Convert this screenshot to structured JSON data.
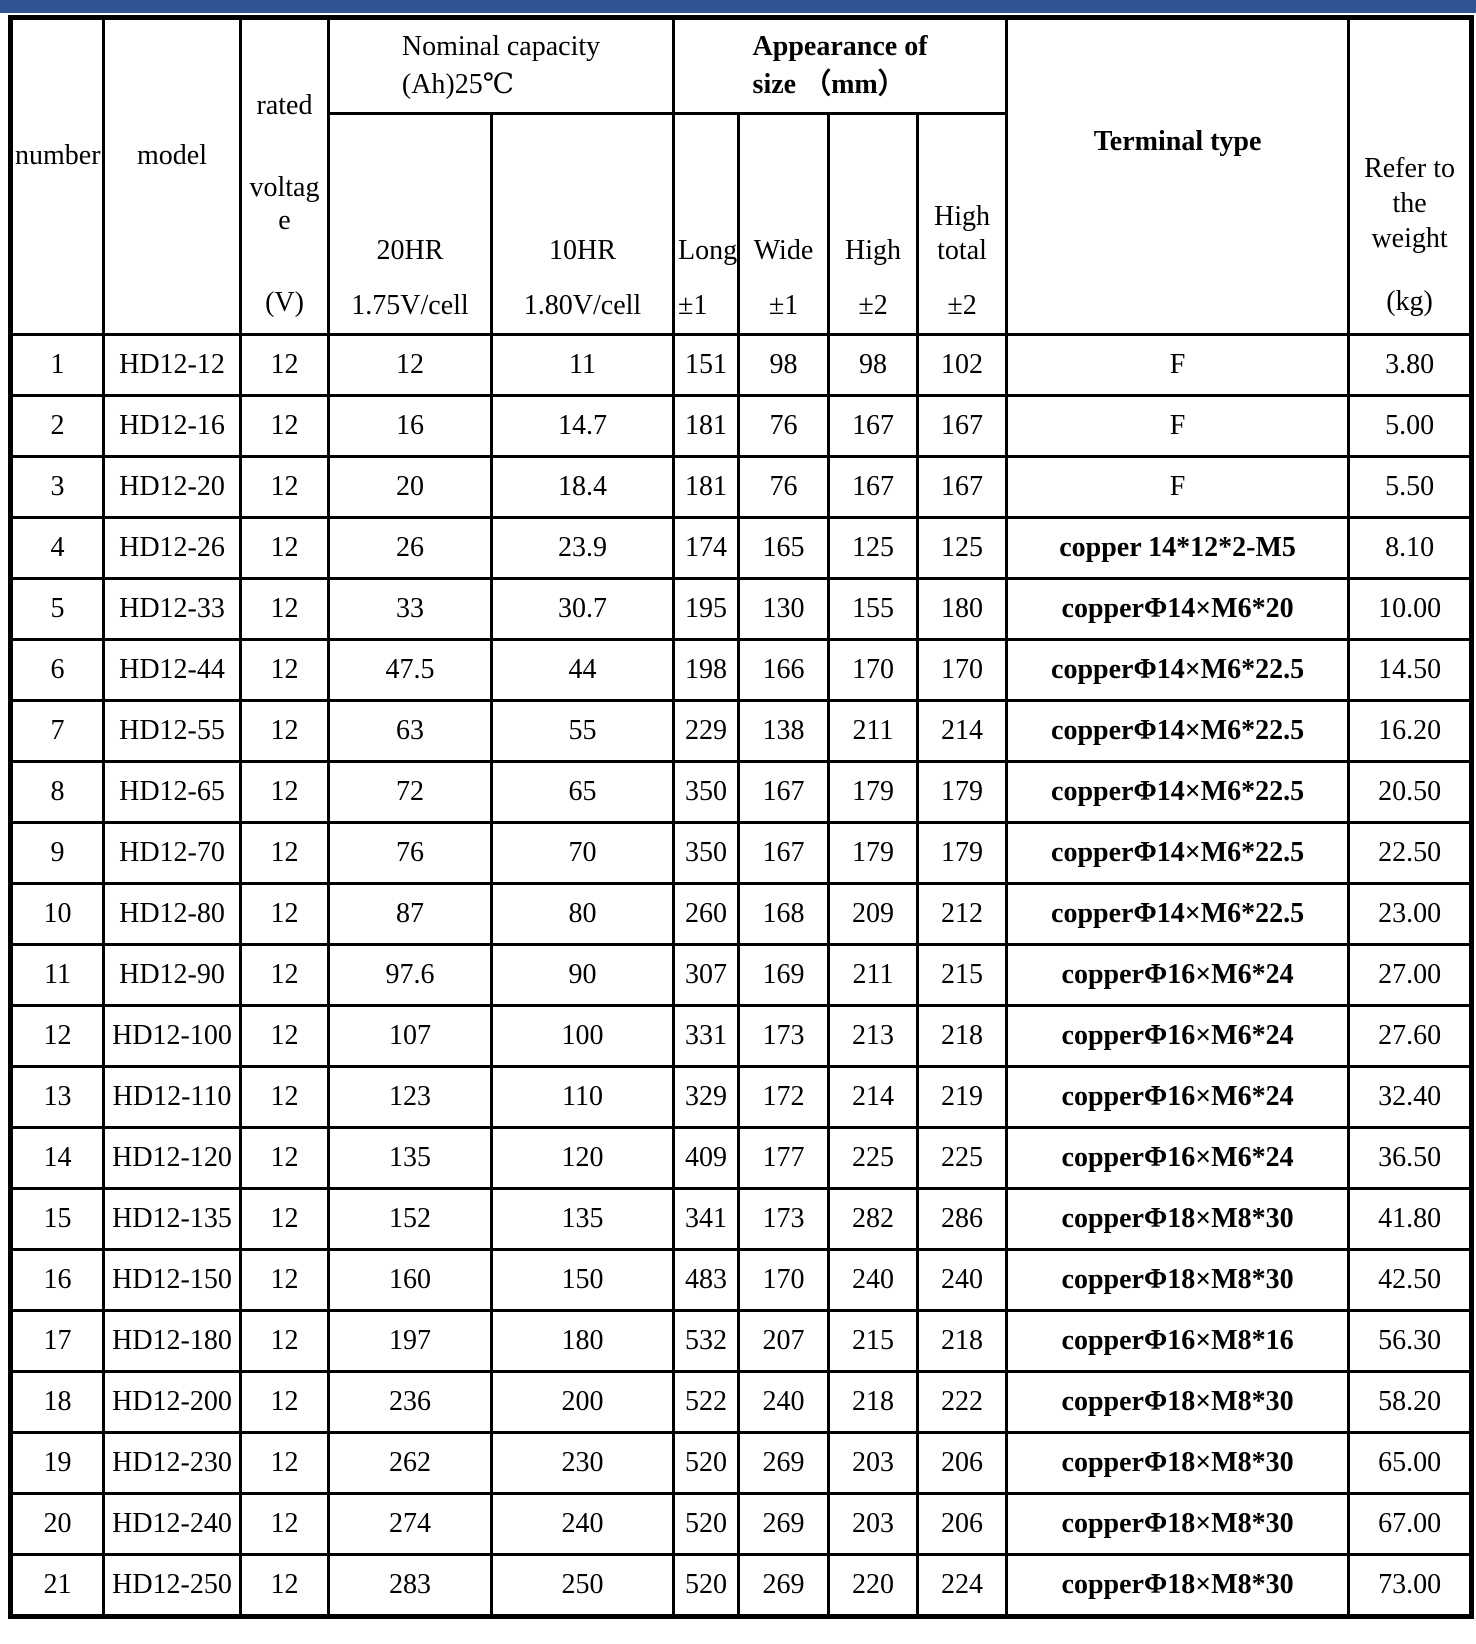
{
  "page": {
    "top_bar_color": "#2f5496"
  },
  "table": {
    "header": {
      "number_label": "number",
      "model_label": "model",
      "rated_voltage": {
        "lines": [
          "rated",
          "voltag",
          "e"
        ],
        "unit": "(V)"
      },
      "nominal_capacity": {
        "line1": "Nominal capacity",
        "line2": "(Ah)25℃"
      },
      "capacity_cols": [
        {
          "label": "20HR",
          "sub": "1.75V/cell"
        },
        {
          "label": "10HR",
          "sub": "1.80V/cell"
        }
      ],
      "appearance": {
        "line1": "Appearance of",
        "line2": "size （mm）"
      },
      "size_cols": [
        {
          "line1": "Long",
          "line2": "",
          "tol": "±1"
        },
        {
          "line1": "Wide",
          "line2": "",
          "tol": "±1"
        },
        {
          "line1": "High",
          "line2": "",
          "tol": "±2"
        },
        {
          "line1": "High",
          "line2": "total",
          "tol": "±2"
        }
      ],
      "terminal_label": "Terminal type",
      "weight": {
        "lines": [
          "Refer to",
          "the",
          "weight"
        ],
        "unit": "(kg)"
      }
    },
    "columns_order": [
      "number",
      "model",
      "voltage",
      "c20",
      "c10",
      "long",
      "wide",
      "high",
      "high_total",
      "terminal",
      "weight"
    ],
    "rows": [
      {
        "number": "1",
        "model": "HD12-12",
        "voltage": "12",
        "c20": "12",
        "c10": "11",
        "long": "151",
        "wide": "98",
        "high": "98",
        "high_total": "102",
        "terminal": "F",
        "weight": "3.80"
      },
      {
        "number": "2",
        "model": "HD12-16",
        "voltage": "12",
        "c20": "16",
        "c10": "14.7",
        "long": "181",
        "wide": "76",
        "high": "167",
        "high_total": "167",
        "terminal": "F",
        "weight": "5.00"
      },
      {
        "number": "3",
        "model": "HD12-20",
        "voltage": "12",
        "c20": "20",
        "c10": "18.4",
        "long": "181",
        "wide": "76",
        "high": "167",
        "high_total": "167",
        "terminal": "F",
        "weight": "5.50"
      },
      {
        "number": "4",
        "model": "HD12-26",
        "voltage": "12",
        "c20": "26",
        "c10": "23.9",
        "long": "174",
        "wide": "165",
        "high": "125",
        "high_total": "125",
        "terminal": "copper 14*12*2-M5",
        "weight": "8.10"
      },
      {
        "number": "5",
        "model": "HD12-33",
        "voltage": "12",
        "c20": "33",
        "c10": "30.7",
        "long": "195",
        "wide": "130",
        "high": "155",
        "high_total": "180",
        "terminal": "copperΦ14×M6*20",
        "weight": "10.00"
      },
      {
        "number": "6",
        "model": "HD12-44",
        "voltage": "12",
        "c20": "47.5",
        "c10": "44",
        "long": "198",
        "wide": "166",
        "high": "170",
        "high_total": "170",
        "terminal": "copperΦ14×M6*22.5",
        "weight": "14.50"
      },
      {
        "number": "7",
        "model": "HD12-55",
        "voltage": "12",
        "c20": "63",
        "c10": "55",
        "long": "229",
        "wide": "138",
        "high": "211",
        "high_total": "214",
        "terminal": "copperΦ14×M6*22.5",
        "weight": "16.20"
      },
      {
        "number": "8",
        "model": "HD12-65",
        "voltage": "12",
        "c20": "72",
        "c10": "65",
        "long": "350",
        "wide": "167",
        "high": "179",
        "high_total": "179",
        "terminal": "copperΦ14×M6*22.5",
        "weight": "20.50"
      },
      {
        "number": "9",
        "model": "HD12-70",
        "voltage": "12",
        "c20": "76",
        "c10": "70",
        "long": "350",
        "wide": "167",
        "high": "179",
        "high_total": "179",
        "terminal": "copperΦ14×M6*22.5",
        "weight": "22.50"
      },
      {
        "number": "10",
        "model": "HD12-80",
        "voltage": "12",
        "c20": "87",
        "c10": "80",
        "long": "260",
        "wide": "168",
        "high": "209",
        "high_total": "212",
        "terminal": "copperΦ14×M6*22.5",
        "weight": "23.00"
      },
      {
        "number": "11",
        "model": "HD12-90",
        "voltage": "12",
        "c20": "97.6",
        "c10": "90",
        "long": "307",
        "wide": "169",
        "high": "211",
        "high_total": "215",
        "terminal": "copperΦ16×M6*24",
        "weight": "27.00"
      },
      {
        "number": "12",
        "model": "HD12-100",
        "voltage": "12",
        "c20": "107",
        "c10": "100",
        "long": "331",
        "wide": "173",
        "high": "213",
        "high_total": "218",
        "terminal": "copperΦ16×M6*24",
        "weight": "27.60"
      },
      {
        "number": "13",
        "model": "HD12-110",
        "voltage": "12",
        "c20": "123",
        "c10": "110",
        "long": "329",
        "wide": "172",
        "high": "214",
        "high_total": "219",
        "terminal": "copperΦ16×M6*24",
        "weight": "32.40"
      },
      {
        "number": "14",
        "model": "HD12-120",
        "voltage": "12",
        "c20": "135",
        "c10": "120",
        "long": "409",
        "wide": "177",
        "high": "225",
        "high_total": "225",
        "terminal": "copperΦ16×M6*24",
        "weight": "36.50"
      },
      {
        "number": "15",
        "model": "HD12-135",
        "voltage": "12",
        "c20": "152",
        "c10": "135",
        "long": "341",
        "wide": "173",
        "high": "282",
        "high_total": "286",
        "terminal": "copperΦ18×M8*30",
        "weight": "41.80"
      },
      {
        "number": "16",
        "model": "HD12-150",
        "voltage": "12",
        "c20": "160",
        "c10": "150",
        "long": "483",
        "wide": "170",
        "high": "240",
        "high_total": "240",
        "terminal": "copperΦ18×M8*30",
        "weight": "42.50"
      },
      {
        "number": "17",
        "model": "HD12-180",
        "voltage": "12",
        "c20": "197",
        "c10": "180",
        "long": "532",
        "wide": "207",
        "high": "215",
        "high_total": "218",
        "terminal": "copperΦ16×M8*16",
        "weight": "56.30"
      },
      {
        "number": "18",
        "model": "HD12-200",
        "voltage": "12",
        "c20": "236",
        "c10": "200",
        "long": "522",
        "wide": "240",
        "high": "218",
        "high_total": "222",
        "terminal": "copperΦ18×M8*30",
        "weight": "58.20"
      },
      {
        "number": "19",
        "model": "HD12-230",
        "voltage": "12",
        "c20": "262",
        "c10": "230",
        "long": "520",
        "wide": "269",
        "high": "203",
        "high_total": "206",
        "terminal": "copperΦ18×M8*30",
        "weight": "65.00"
      },
      {
        "number": "20",
        "model": "HD12-240",
        "voltage": "12",
        "c20": "274",
        "c10": "240",
        "long": "520",
        "wide": "269",
        "high": "203",
        "high_total": "206",
        "terminal": "copperΦ18×M8*30",
        "weight": "67.00"
      },
      {
        "number": "21",
        "model": "HD12-250",
        "voltage": "12",
        "c20": "283",
        "c10": "250",
        "long": "520",
        "wide": "269",
        "high": "220",
        "high_total": "224",
        "terminal": "copperΦ18×M8*30",
        "weight": "73.00"
      }
    ]
  }
}
